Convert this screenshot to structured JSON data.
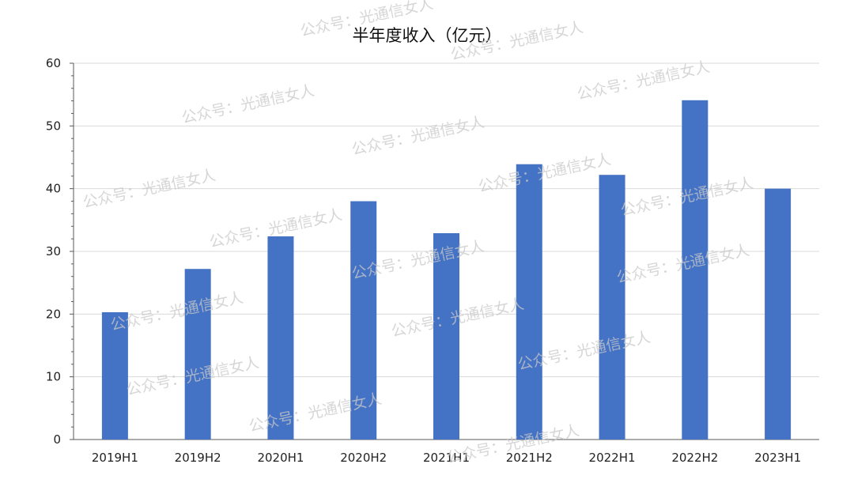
{
  "chart_data": {
    "type": "bar",
    "title": "半年度收入（亿元）",
    "categories": [
      "2019H1",
      "2019H2",
      "2020H1",
      "2020H2",
      "2021H1",
      "2021H2",
      "2022H1",
      "2022H2",
      "2023H1"
    ],
    "values": [
      20.3,
      27.2,
      32.4,
      38.0,
      32.9,
      43.9,
      42.2,
      54.1,
      40.0
    ],
    "ylim": [
      0,
      60
    ],
    "yticks": [
      0,
      10,
      20,
      30,
      40,
      50,
      60
    ],
    "grid": true,
    "bar_color": "#4472C4"
  },
  "watermark": "公众号：光通信女人"
}
